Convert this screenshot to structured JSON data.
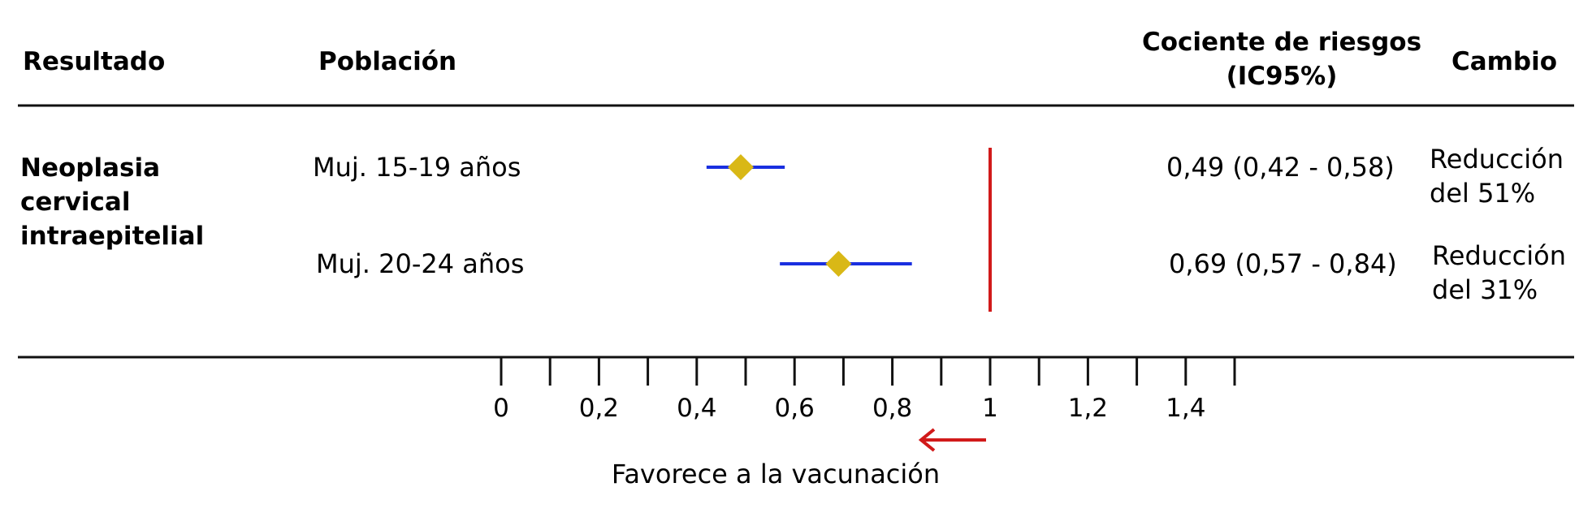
{
  "headers": {
    "result": "Resultado",
    "population": "Población",
    "ratio_line1": "Cociente de riesgos",
    "ratio_line2": "(IC95%)",
    "change": "Cambio"
  },
  "outcome_label": [
    "Neoplasia",
    "cervical",
    "intraepitelial"
  ],
  "annotation": "Favorece a la vacunación",
  "colors": {
    "ci_line": "#1a2fe0",
    "point": "#d9b816",
    "reference": "#d11a1a",
    "rules": "#111111"
  },
  "chart_data": {
    "type": "forest",
    "xlim": [
      0,
      1.5
    ],
    "ticks": [
      0,
      0.1,
      0.2,
      0.3,
      0.4,
      0.5,
      0.6,
      0.7,
      0.8,
      0.9,
      1.0,
      1.1,
      1.2,
      1.3,
      1.4,
      1.5
    ],
    "tick_labels": [
      {
        "value": 0,
        "label": "0"
      },
      {
        "value": 0.2,
        "label": "0,2"
      },
      {
        "value": 0.4,
        "label": "0,4"
      },
      {
        "value": 0.6,
        "label": "0,6"
      },
      {
        "value": 0.8,
        "label": "0,8"
      },
      {
        "value": 1.0,
        "label": "1"
      },
      {
        "value": 1.2,
        "label": "1,2"
      },
      {
        "value": 1.4,
        "label": "1,4"
      }
    ],
    "reference_value": 1,
    "rows": [
      {
        "population": "Muj. 15-19 años",
        "estimate": 0.49,
        "lower": 0.42,
        "upper": 0.58,
        "ratio_text": "0,49 (0,42 - 0,58)",
        "change": [
          "Reducción",
          "del 51%"
        ]
      },
      {
        "population": "Muj. 20-24 años",
        "estimate": 0.69,
        "lower": 0.57,
        "upper": 0.84,
        "ratio_text": "0,69 (0,57 - 0,84)",
        "change": [
          "Reducción",
          "del 31%"
        ]
      }
    ]
  }
}
